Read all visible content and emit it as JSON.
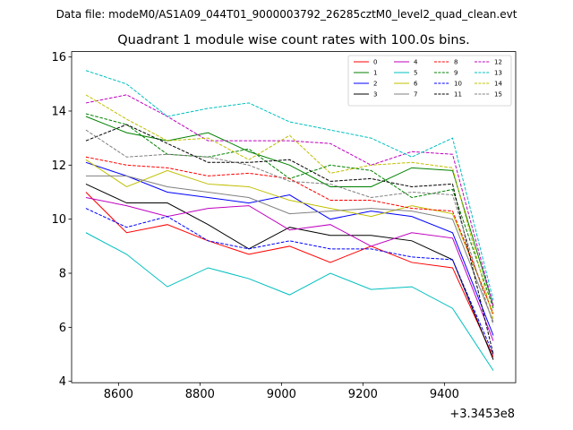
{
  "chart_data": {
    "type": "line",
    "suptitle": "Data file: modeM0/AS1A09_044T01_9000003792_26285cztM0_level2_quad_clean.evt",
    "title": "Quadrant 1 module wise count rates with 100.0s bins.",
    "xlabel": "",
    "ylabel": "",
    "x_offset_label": "+3.3453e8",
    "x": [
      8520,
      8620,
      8720,
      8820,
      8920,
      9020,
      9120,
      9220,
      9320,
      9420,
      9520
    ],
    "xlim": [
      8485,
      9575
    ],
    "ylim": [
      3.95,
      16.2
    ],
    "x_ticks": [
      8600,
      8800,
      9000,
      9200,
      9400
    ],
    "x_tick_labels": [
      "8600",
      "8800",
      "9000",
      "9200",
      "9400"
    ],
    "y_ticks": [
      4,
      6,
      8,
      10,
      12,
      14,
      16
    ],
    "y_tick_labels": [
      "4",
      "6",
      "8",
      "10",
      "12",
      "14",
      "16"
    ],
    "legend_location": "upper right",
    "series": [
      {
        "name": "0",
        "color": "#ff0000",
        "style": "solid",
        "values": [
          11.0,
          9.5,
          9.8,
          9.2,
          8.7,
          9.0,
          8.4,
          9.0,
          8.4,
          8.2,
          4.9
        ]
      },
      {
        "name": "1",
        "color": "#008000",
        "style": "solid",
        "values": [
          13.8,
          13.2,
          12.9,
          13.2,
          12.5,
          12.0,
          11.2,
          11.2,
          11.9,
          11.8,
          6.8
        ]
      },
      {
        "name": "2",
        "color": "#0000ff",
        "style": "solid",
        "values": [
          12.1,
          11.6,
          11.0,
          10.8,
          10.6,
          10.9,
          10.0,
          10.3,
          10.1,
          9.5,
          5.7
        ]
      },
      {
        "name": "3",
        "color": "#000000",
        "style": "solid",
        "values": [
          11.3,
          10.6,
          10.6,
          9.8,
          8.9,
          9.7,
          9.4,
          9.4,
          9.2,
          8.5,
          4.8
        ]
      },
      {
        "name": "4",
        "color": "#bf00bf",
        "style": "solid",
        "values": [
          10.8,
          10.5,
          10.1,
          10.4,
          10.5,
          9.6,
          9.8,
          9.0,
          9.5,
          9.3,
          5.5
        ]
      },
      {
        "name": "5",
        "color": "#00bfbf",
        "style": "solid",
        "values": [
          9.5,
          8.7,
          7.5,
          8.2,
          7.8,
          7.2,
          8.0,
          7.4,
          7.5,
          6.7,
          4.4
        ]
      },
      {
        "name": "6",
        "color": "#bfbf00",
        "style": "solid",
        "values": [
          12.2,
          11.2,
          11.8,
          11.3,
          11.2,
          10.7,
          10.4,
          10.1,
          10.5,
          10.2,
          6.5
        ]
      },
      {
        "name": "7",
        "color": "#808080",
        "style": "solid",
        "values": [
          11.6,
          11.6,
          11.2,
          11.0,
          10.8,
          10.2,
          10.3,
          10.4,
          10.3,
          10.0,
          6.2
        ]
      },
      {
        "name": "8",
        "color": "#ff0000",
        "style": "dashed",
        "values": [
          12.3,
          12.0,
          11.9,
          11.6,
          11.7,
          11.5,
          10.7,
          10.7,
          10.4,
          10.3,
          6.5
        ]
      },
      {
        "name": "9",
        "color": "#008000",
        "style": "dashed",
        "values": [
          13.9,
          13.5,
          12.4,
          12.3,
          12.6,
          11.5,
          12.0,
          11.8,
          10.8,
          11.1,
          6.7
        ]
      },
      {
        "name": "10",
        "color": "#0000ff",
        "style": "dashed",
        "values": [
          10.4,
          9.7,
          10.1,
          9.2,
          8.9,
          9.2,
          8.9,
          8.9,
          8.6,
          8.5,
          5.0
        ]
      },
      {
        "name": "11",
        "color": "#000000",
        "style": "dashed",
        "values": [
          12.9,
          13.5,
          12.8,
          12.1,
          12.1,
          12.2,
          11.4,
          11.5,
          11.2,
          11.3,
          5.0
        ]
      },
      {
        "name": "12",
        "color": "#bf00bf",
        "style": "dashed",
        "values": [
          14.3,
          14.6,
          13.8,
          12.9,
          12.9,
          12.9,
          12.8,
          12.0,
          12.5,
          12.4,
          6.8
        ]
      },
      {
        "name": "13",
        "color": "#00bfbf",
        "style": "dashed",
        "values": [
          15.5,
          15.0,
          13.8,
          14.1,
          14.3,
          13.6,
          13.3,
          13.0,
          12.3,
          13.0,
          7.0
        ]
      },
      {
        "name": "14",
        "color": "#bfbf00",
        "style": "dashed",
        "values": [
          14.6,
          13.7,
          12.9,
          13.0,
          12.2,
          13.1,
          11.7,
          12.0,
          12.1,
          11.9,
          6.3
        ]
      },
      {
        "name": "15",
        "color": "#808080",
        "style": "dashed",
        "values": [
          13.3,
          12.3,
          12.4,
          12.3,
          12.0,
          11.4,
          11.3,
          10.8,
          11.0,
          10.9,
          6.1
        ]
      }
    ]
  }
}
